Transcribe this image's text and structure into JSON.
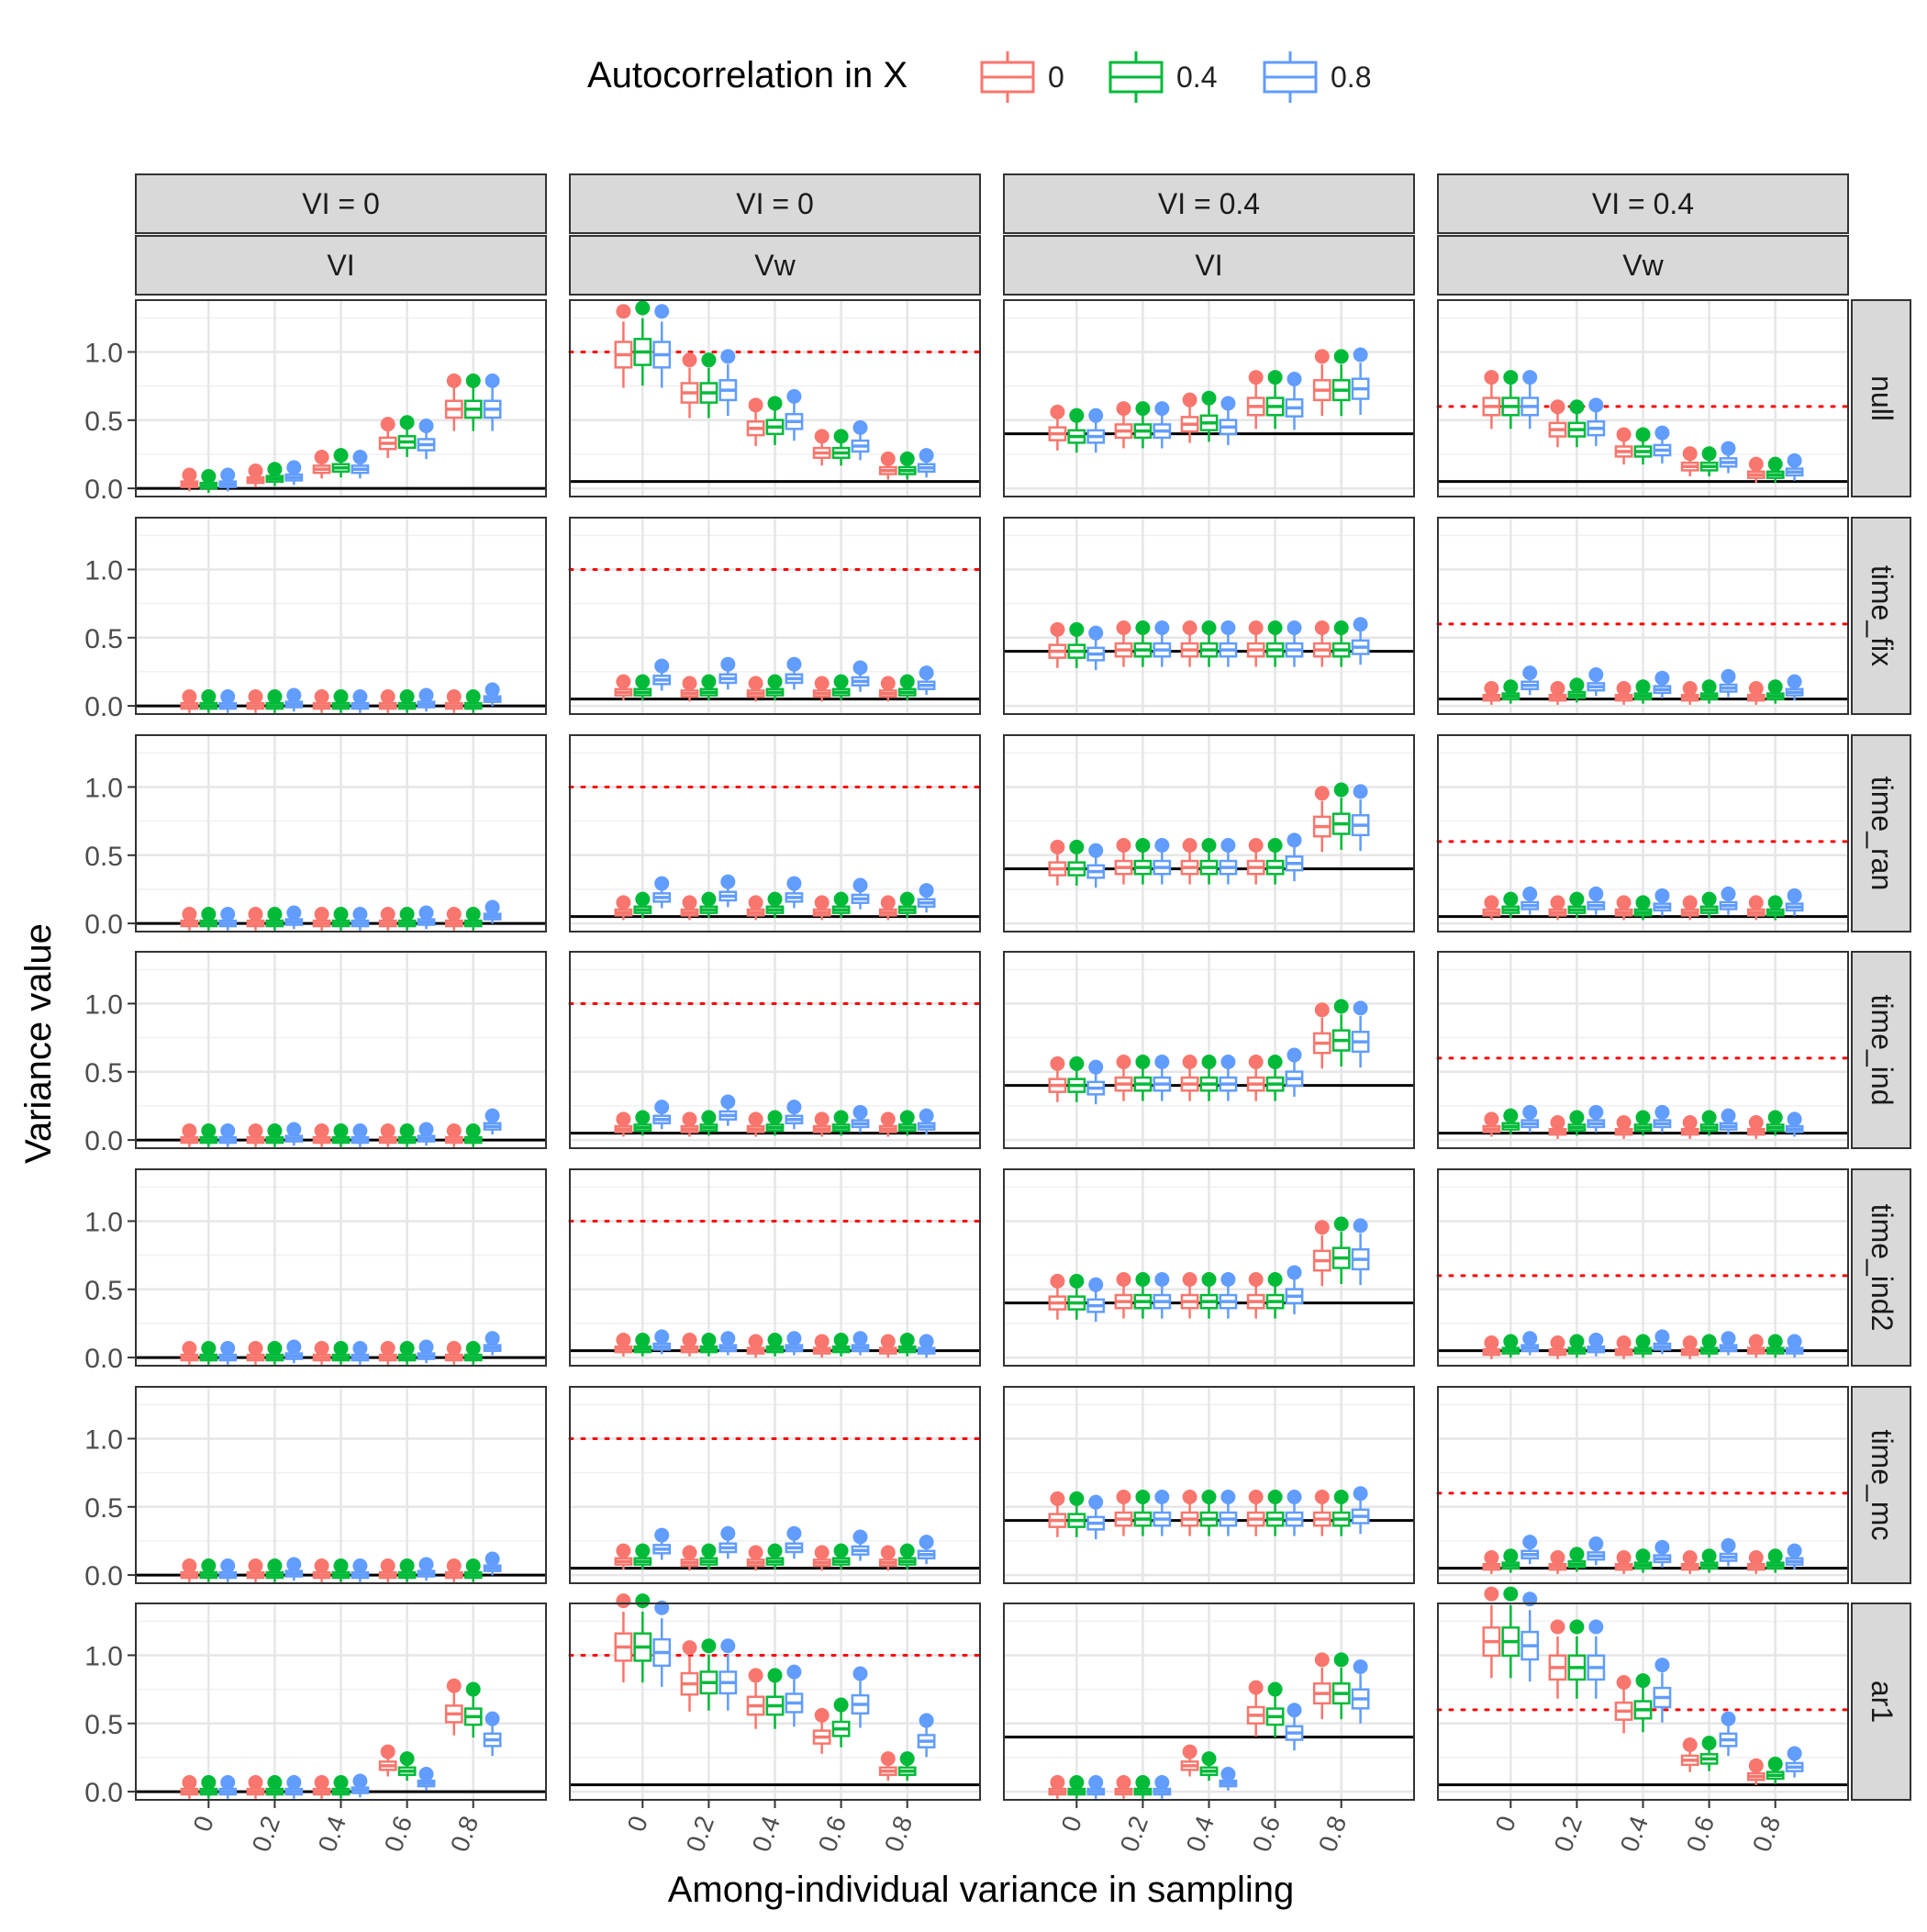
{
  "legend": {
    "title": "Autocorrelation in X",
    "entries": [
      {
        "label": "0",
        "color": "#F8766D"
      },
      {
        "label": "0.4",
        "color": "#00BA38"
      },
      {
        "label": "0.8",
        "color": "#619CFF"
      }
    ]
  },
  "axes": {
    "xlabel": "Among-individual variance in sampling",
    "ylabel": "Variance value"
  },
  "columns": [
    {
      "top": "VI = 0",
      "bottom": "VI"
    },
    {
      "top": "VI = 0",
      "bottom": "Vw"
    },
    {
      "top": "VI = 0.4",
      "bottom": "VI"
    },
    {
      "top": "VI = 0.4",
      "bottom": "Vw"
    }
  ],
  "rows": [
    "null",
    "time_fix",
    "time_ran",
    "time_ind",
    "time_ind2",
    "time_mc",
    "ar1"
  ],
  "chart_data": {
    "type": "boxplot",
    "facet_columns": [
      "VI = 0 / VI",
      "VI = 0 / Vw",
      "VI = 0.4 / VI",
      "VI = 0.4 / Vw"
    ],
    "facet_rows": [
      "null",
      "time_fix",
      "time_ran",
      "time_ind",
      "time_ind2",
      "time_mc",
      "ar1"
    ],
    "x_categories": [
      "0",
      "0.2",
      "0.4",
      "0.6",
      "0.8"
    ],
    "x_tick_labels": [
      "0",
      "0.2",
      "0.4",
      "0.6",
      "0.8"
    ],
    "y_ticks": [
      "0.0",
      "0.5",
      "1.0"
    ],
    "ylim": [
      -0.06,
      1.38
    ],
    "series": [
      "0",
      "0.4",
      "0.8"
    ],
    "reference_lines": {
      "solid_by_column": [
        0.0,
        0.05,
        0.4,
        0.05
      ],
      "dotted_by_column": [
        null,
        1.0,
        null,
        0.6
      ]
    },
    "medians": {
      "null": [
        [
          [
            0.03,
            0.02,
            0.03
          ],
          [
            0.06,
            0.07,
            0.08
          ],
          [
            0.14,
            0.15,
            0.14
          ],
          [
            0.33,
            0.34,
            0.32
          ],
          [
            0.58,
            0.58,
            0.58
          ]
        ],
        [
          [
            0.98,
            1.0,
            0.98
          ],
          [
            0.7,
            0.7,
            0.72
          ],
          [
            0.44,
            0.45,
            0.49
          ],
          [
            0.26,
            0.26,
            0.31
          ],
          [
            0.13,
            0.13,
            0.15
          ]
        ],
        [
          [
            0.4,
            0.38,
            0.38
          ],
          [
            0.42,
            0.42,
            0.42
          ],
          [
            0.47,
            0.48,
            0.45
          ],
          [
            0.6,
            0.6,
            0.59
          ],
          [
            0.72,
            0.72,
            0.73
          ]
        ],
        [
          [
            0.6,
            0.6,
            0.6
          ],
          [
            0.43,
            0.43,
            0.44
          ],
          [
            0.27,
            0.27,
            0.28
          ],
          [
            0.16,
            0.16,
            0.19
          ],
          [
            0.1,
            0.1,
            0.12
          ]
        ]
      ],
      "time_fix": [
        [
          [
            0.0,
            0.0,
            0.0
          ],
          [
            0.0,
            0.0,
            0.01
          ],
          [
            0.0,
            0.0,
            0.0
          ],
          [
            0.0,
            0.0,
            0.01
          ],
          [
            0.0,
            0.0,
            0.05
          ]
        ],
        [
          [
            0.1,
            0.1,
            0.19
          ],
          [
            0.09,
            0.1,
            0.2
          ],
          [
            0.09,
            0.1,
            0.2
          ],
          [
            0.09,
            0.1,
            0.18
          ],
          [
            0.09,
            0.1,
            0.15
          ]
        ],
        [
          [
            0.4,
            0.4,
            0.38
          ],
          [
            0.41,
            0.41,
            0.41
          ],
          [
            0.41,
            0.41,
            0.41
          ],
          [
            0.41,
            0.41,
            0.41
          ],
          [
            0.41,
            0.41,
            0.43
          ]
        ],
        [
          [
            0.06,
            0.07,
            0.15
          ],
          [
            0.06,
            0.08,
            0.14
          ],
          [
            0.06,
            0.07,
            0.12
          ],
          [
            0.06,
            0.07,
            0.13
          ],
          [
            0.06,
            0.07,
            0.1
          ]
        ]
      ],
      "time_ran": [
        [
          [
            0.0,
            0.0,
            0.0
          ],
          [
            0.0,
            0.0,
            0.01
          ],
          [
            0.0,
            0.0,
            0.0
          ],
          [
            0.0,
            0.0,
            0.01
          ],
          [
            0.0,
            0.0,
            0.05
          ]
        ],
        [
          [
            0.08,
            0.1,
            0.19
          ],
          [
            0.08,
            0.1,
            0.2
          ],
          [
            0.08,
            0.1,
            0.19
          ],
          [
            0.08,
            0.1,
            0.18
          ],
          [
            0.08,
            0.1,
            0.15
          ]
        ],
        [
          [
            0.4,
            0.4,
            0.38
          ],
          [
            0.41,
            0.41,
            0.41
          ],
          [
            0.41,
            0.41,
            0.41
          ],
          [
            0.41,
            0.41,
            0.44
          ],
          [
            0.71,
            0.73,
            0.72
          ]
        ],
        [
          [
            0.08,
            0.1,
            0.13
          ],
          [
            0.08,
            0.1,
            0.13
          ],
          [
            0.08,
            0.08,
            0.12
          ],
          [
            0.08,
            0.1,
            0.13
          ],
          [
            0.08,
            0.08,
            0.12
          ]
        ]
      ],
      "time_ind": [
        [
          [
            0.0,
            0.0,
            0.0
          ],
          [
            0.0,
            0.0,
            0.01
          ],
          [
            0.0,
            0.0,
            0.0
          ],
          [
            0.0,
            0.0,
            0.01
          ],
          [
            0.0,
            0.0,
            0.1
          ]
        ],
        [
          [
            0.08,
            0.09,
            0.15
          ],
          [
            0.08,
            0.09,
            0.18
          ],
          [
            0.08,
            0.09,
            0.15
          ],
          [
            0.08,
            0.09,
            0.12
          ],
          [
            0.08,
            0.09,
            0.1
          ]
        ],
        [
          [
            0.4,
            0.4,
            0.38
          ],
          [
            0.41,
            0.41,
            0.41
          ],
          [
            0.41,
            0.41,
            0.41
          ],
          [
            0.41,
            0.41,
            0.45
          ],
          [
            0.71,
            0.73,
            0.72
          ]
        ],
        [
          [
            0.08,
            0.1,
            0.12
          ],
          [
            0.06,
            0.09,
            0.12
          ],
          [
            0.06,
            0.09,
            0.12
          ],
          [
            0.06,
            0.09,
            0.1
          ],
          [
            0.06,
            0.09,
            0.08
          ]
        ]
      ],
      "time_ind2": [
        [
          [
            0.0,
            0.0,
            0.0
          ],
          [
            0.0,
            0.0,
            0.01
          ],
          [
            0.0,
            0.0,
            0.0
          ],
          [
            0.0,
            0.0,
            0.01
          ],
          [
            0.0,
            0.0,
            0.07
          ]
        ],
        [
          [
            0.06,
            0.06,
            0.08
          ],
          [
            0.06,
            0.06,
            0.07
          ],
          [
            0.05,
            0.06,
            0.07
          ],
          [
            0.05,
            0.06,
            0.07
          ],
          [
            0.05,
            0.06,
            0.05
          ]
        ],
        [
          [
            0.4,
            0.4,
            0.38
          ],
          [
            0.41,
            0.41,
            0.41
          ],
          [
            0.41,
            0.41,
            0.41
          ],
          [
            0.41,
            0.41,
            0.45
          ],
          [
            0.71,
            0.73,
            0.72
          ]
        ],
        [
          [
            0.04,
            0.05,
            0.07
          ],
          [
            0.04,
            0.05,
            0.06
          ],
          [
            0.04,
            0.05,
            0.08
          ],
          [
            0.04,
            0.05,
            0.07
          ],
          [
            0.05,
            0.05,
            0.05
          ]
        ]
      ],
      "time_mc": [
        [
          [
            0.0,
            0.0,
            0.0
          ],
          [
            0.0,
            0.0,
            0.01
          ],
          [
            0.0,
            0.0,
            0.0
          ],
          [
            0.0,
            0.0,
            0.01
          ],
          [
            0.0,
            0.0,
            0.05
          ]
        ],
        [
          [
            0.1,
            0.1,
            0.19
          ],
          [
            0.09,
            0.1,
            0.2
          ],
          [
            0.09,
            0.1,
            0.2
          ],
          [
            0.09,
            0.1,
            0.18
          ],
          [
            0.09,
            0.1,
            0.15
          ]
        ],
        [
          [
            0.4,
            0.4,
            0.38
          ],
          [
            0.41,
            0.41,
            0.41
          ],
          [
            0.41,
            0.41,
            0.41
          ],
          [
            0.41,
            0.41,
            0.41
          ],
          [
            0.41,
            0.41,
            0.43
          ]
        ],
        [
          [
            0.06,
            0.07,
            0.15
          ],
          [
            0.06,
            0.08,
            0.14
          ],
          [
            0.06,
            0.07,
            0.12
          ],
          [
            0.06,
            0.07,
            0.13
          ],
          [
            0.06,
            0.07,
            0.1
          ]
        ]
      ],
      "ar1": [
        [
          [
            0.0,
            0.0,
            0.0
          ],
          [
            0.0,
            0.0,
            0.0
          ],
          [
            0.0,
            0.0,
            0.01
          ],
          [
            0.19,
            0.15,
            0.06
          ],
          [
            0.57,
            0.55,
            0.38
          ]
        ],
        [
          [
            1.06,
            1.06,
            1.02
          ],
          [
            0.79,
            0.8,
            0.8
          ],
          [
            0.63,
            0.63,
            0.65
          ],
          [
            0.4,
            0.46,
            0.64
          ],
          [
            0.15,
            0.15,
            0.37
          ]
        ],
        [
          [
            0.0,
            0.0,
            0.0
          ],
          [
            0.0,
            0.0,
            0.0
          ],
          [
            0.19,
            0.15,
            0.06
          ],
          [
            0.56,
            0.55,
            0.43
          ],
          [
            0.72,
            0.72,
            0.68
          ]
        ],
        [
          [
            1.1,
            1.1,
            1.07
          ],
          [
            0.91,
            0.91,
            0.91
          ],
          [
            0.59,
            0.6,
            0.69
          ],
          [
            0.23,
            0.24,
            0.38
          ],
          [
            0.11,
            0.12,
            0.18
          ]
        ]
      ]
    },
    "title": ""
  }
}
